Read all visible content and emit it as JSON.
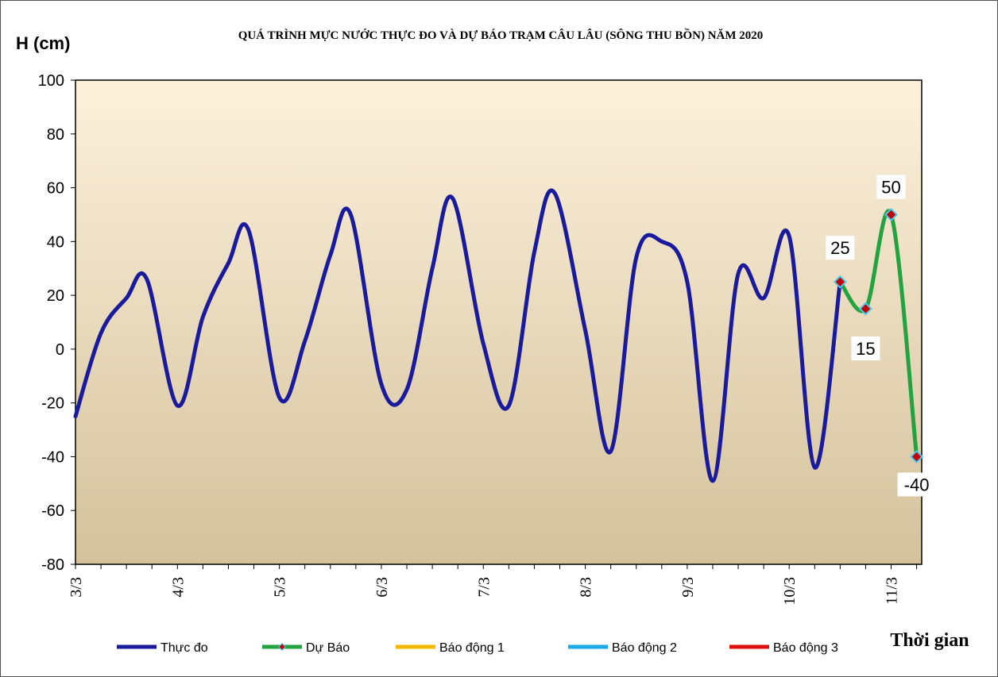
{
  "chart_data": {
    "type": "line",
    "title": "QUÁ TRÌNH MỰC NƯỚC THỰC ĐO VÀ DỰ BÁO TRẠM CÂU LÂU (SÔNG THU BỒN) NĂM  2020",
    "ylabel": "H (cm)",
    "xlabel": "Thời gian",
    "ylim": [
      -80,
      100
    ],
    "yticks": [
      "100",
      "80",
      "60",
      "40",
      "20",
      "0",
      "-20",
      "-40",
      "-60",
      "-80"
    ],
    "xlim": [
      0,
      8.3
    ],
    "xticks": [
      {
        "label": "3/3",
        "x": 0
      },
      {
        "label": "4/3",
        "x": 1
      },
      {
        "label": "5/3",
        "x": 2
      },
      {
        "label": "6/3",
        "x": 3
      },
      {
        "label": "7/3",
        "x": 4
      },
      {
        "label": "8/3",
        "x": 5
      },
      {
        "label": "9/3",
        "x": 6
      },
      {
        "label": "10/3",
        "x": 7
      },
      {
        "label": "11/3",
        "x": 8
      }
    ],
    "grid": false,
    "legend_position": "bottom",
    "series": [
      {
        "name": "Thực đo",
        "color": "#1a1a9c",
        "points": [
          [
            0.0,
            -25
          ],
          [
            0.25,
            6
          ],
          [
            0.5,
            19
          ],
          [
            0.7,
            26
          ],
          [
            1.0,
            -21
          ],
          [
            1.25,
            12
          ],
          [
            1.5,
            32
          ],
          [
            1.7,
            44
          ],
          [
            2.0,
            -18
          ],
          [
            2.25,
            3
          ],
          [
            2.5,
            35
          ],
          [
            2.7,
            50
          ],
          [
            3.0,
            -13
          ],
          [
            3.25,
            -15
          ],
          [
            3.5,
            30
          ],
          [
            3.7,
            56
          ],
          [
            4.0,
            2
          ],
          [
            4.25,
            -21
          ],
          [
            4.5,
            36
          ],
          [
            4.7,
            58
          ],
          [
            5.0,
            7
          ],
          [
            5.25,
            -38
          ],
          [
            5.5,
            34
          ],
          [
            5.75,
            40
          ],
          [
            6.0,
            25
          ],
          [
            6.25,
            -49
          ],
          [
            6.5,
            28
          ],
          [
            6.75,
            19
          ],
          [
            7.0,
            42
          ],
          [
            7.25,
            -44
          ],
          [
            7.5,
            25
          ]
        ]
      },
      {
        "name": "Dự Báo",
        "color": "#22a340",
        "points": [
          [
            7.5,
            25
          ],
          [
            7.75,
            15
          ],
          [
            8.0,
            50
          ],
          [
            8.25,
            -40
          ]
        ]
      },
      {
        "name": "Báo động 1",
        "color": "#f5b800",
        "points": []
      },
      {
        "name": "Báo động 2",
        "color": "#19a9e6",
        "points": []
      },
      {
        "name": "Báo động 3",
        "color": "#e01010",
        "points": []
      }
    ],
    "data_labels": [
      "25",
      "15",
      "50",
      "-40"
    ]
  },
  "plot_bg_top": "#fdf1dc",
  "plot_bg_bottom": "#d4c29c",
  "marker_fill": "#c00000",
  "marker_stroke": "#4ec8ee"
}
